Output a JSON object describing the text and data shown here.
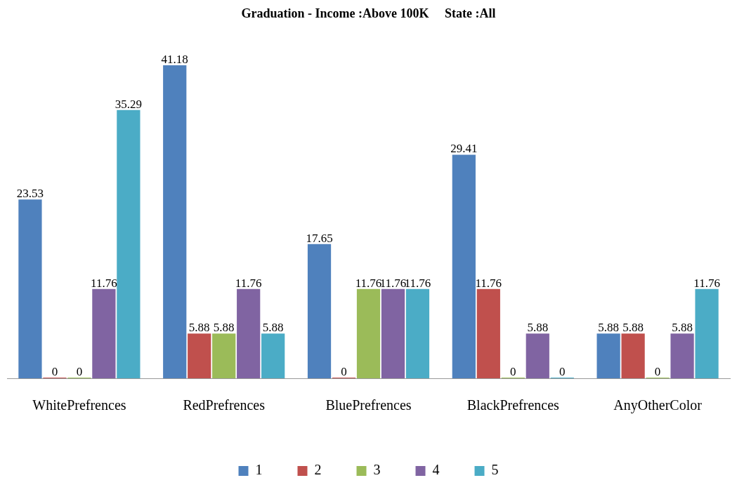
{
  "chart_data": {
    "type": "bar",
    "title": "Graduation - Income :Above 100K     State :All",
    "categories": [
      "WhitePrefrences",
      "RedPrefrences",
      "BluePrefrences",
      "BlackPrefrences",
      "AnyOtherColor"
    ],
    "series": [
      {
        "name": "1",
        "color": "#4f81bd",
        "values": [
          23.53,
          41.18,
          17.65,
          29.41,
          5.88
        ]
      },
      {
        "name": "2",
        "color": "#c0504d",
        "values": [
          0,
          5.88,
          0,
          11.76,
          5.88
        ]
      },
      {
        "name": "3",
        "color": "#9bbb59",
        "values": [
          0,
          5.88,
          11.76,
          0,
          0
        ]
      },
      {
        "name": "4",
        "color": "#8064a2",
        "values": [
          11.76,
          11.76,
          11.76,
          5.88,
          5.88
        ]
      },
      {
        "name": "5",
        "color": "#4bacc6",
        "values": [
          35.29,
          5.88,
          11.76,
          0,
          11.76
        ]
      }
    ],
    "data_labels": true,
    "legend": "bottom",
    "grid": false,
    "tick_labels": "x"
  }
}
